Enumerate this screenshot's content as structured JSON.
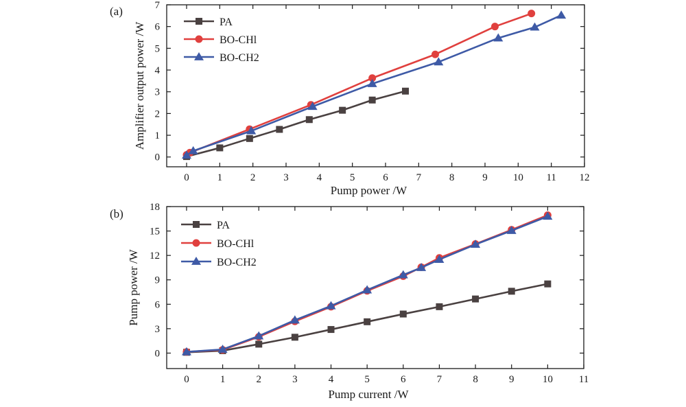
{
  "colors": {
    "PA": "#4a4141",
    "BO-CH1": "#e0403e",
    "BO-CH2": "#3e5aa6",
    "axis": "#1a1a1a"
  },
  "chart_data": [
    {
      "panel": "(a)",
      "type": "line",
      "xlabel": "Pump  power /W",
      "ylabel": "Amplifier output power /W",
      "xlim": [
        -0.6,
        12
      ],
      "ylim": [
        -0.45,
        7
      ],
      "xticks": [
        0,
        1,
        2,
        3,
        4,
        5,
        6,
        7,
        8,
        9,
        10,
        11,
        12
      ],
      "yticks": [
        0,
        1,
        2,
        3,
        4,
        5,
        6,
        7
      ],
      "legend_position": "top-left",
      "series": [
        {
          "name": "PA",
          "marker": "square",
          "x": [
            0,
            1,
            1.9,
            2.8,
            3.7,
            4.7,
            5.6,
            6.6
          ],
          "y": [
            0.02,
            0.42,
            0.85,
            1.27,
            1.72,
            2.15,
            2.62,
            3.03
          ]
        },
        {
          "name": "BO-CHl",
          "marker": "circle",
          "x": [
            0,
            0.1,
            1.9,
            3.75,
            5.6,
            7.5,
            9.3,
            10.4
          ],
          "y": [
            0.1,
            0.2,
            1.28,
            2.4,
            3.63,
            4.72,
            6.0,
            6.6
          ]
        },
        {
          "name": "BO-CH2",
          "marker": "triangle",
          "x": [
            0,
            0.2,
            1.95,
            3.8,
            5.6,
            7.6,
            9.4,
            10.5,
            11.3
          ],
          "y": [
            0.08,
            0.28,
            1.2,
            2.32,
            3.37,
            4.37,
            5.47,
            5.97,
            6.52
          ]
        }
      ]
    },
    {
      "panel": "(b)",
      "type": "line",
      "xlabel": "Pump  current /W",
      "ylabel": "Pump power /W",
      "xlim": [
        -0.55,
        11
      ],
      "ylim": [
        -1.9,
        18
      ],
      "xticks": [
        0,
        1,
        2,
        3,
        4,
        5,
        6,
        7,
        8,
        9,
        10,
        11
      ],
      "yticks": [
        0,
        3,
        6,
        9,
        12,
        15,
        18
      ],
      "legend_position": "top-left",
      "series": [
        {
          "name": "PA",
          "marker": "square",
          "x": [
            0,
            1,
            2,
            3,
            4,
            5,
            6,
            7,
            8,
            9,
            10
          ],
          "y": [
            0.1,
            0.3,
            1.1,
            1.95,
            2.9,
            3.85,
            4.8,
            5.7,
            6.65,
            7.6,
            8.5
          ]
        },
        {
          "name": "BO-CHl",
          "marker": "circle",
          "x": [
            0,
            1,
            2,
            3,
            4,
            5,
            6,
            6.5,
            7,
            8,
            9,
            10
          ],
          "y": [
            0.15,
            0.4,
            2.0,
            3.9,
            5.7,
            7.65,
            9.45,
            10.55,
            11.7,
            13.4,
            15.15,
            16.95
          ]
        },
        {
          "name": "BO-CH2",
          "marker": "triangle",
          "x": [
            0,
            1,
            2,
            3,
            4,
            5,
            6,
            6.5,
            7,
            8,
            9,
            10
          ],
          "y": [
            0.15,
            0.45,
            2.1,
            4.05,
            5.8,
            7.75,
            9.6,
            10.5,
            11.5,
            13.35,
            15.05,
            16.8
          ]
        }
      ]
    }
  ]
}
